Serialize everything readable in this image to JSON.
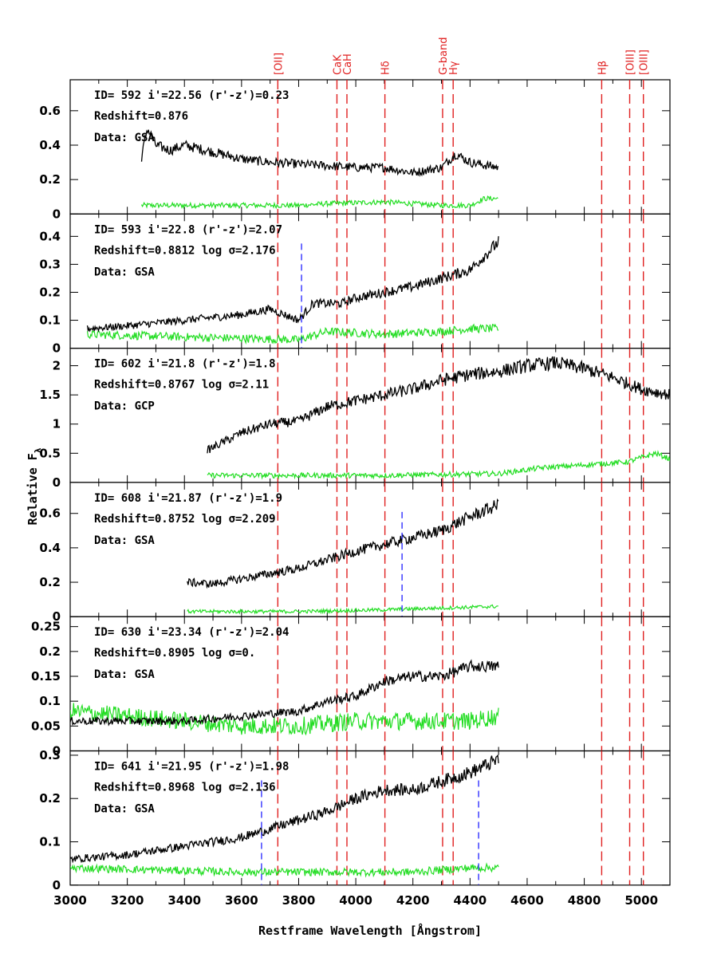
{
  "chart_data": {
    "type": "line",
    "xlabel": "Restframe Wavelength [Ångstrom]",
    "ylabel": "Relative F",
    "ylabel_sub": "λ",
    "xlim": [
      3000,
      5100
    ],
    "xticks": [
      3000,
      3200,
      3400,
      3600,
      3800,
      4000,
      4200,
      4400,
      4600,
      4800,
      5000
    ],
    "colors": {
      "spectrum": "#000000",
      "noise": "#22dd22",
      "line_marker": "#e02020",
      "sky_marker": "#2020ff"
    },
    "lines": [
      {
        "label": "[OII]",
        "wavelength": 3727
      },
      {
        "label": "CaK",
        "wavelength": 3934
      },
      {
        "label": "CaH",
        "wavelength": 3969
      },
      {
        "label": "Hδ",
        "wavelength": 4102
      },
      {
        "label": "G-band",
        "wavelength": 4304
      },
      {
        "label": "Hγ",
        "wavelength": 4341
      },
      {
        "label": "Hβ",
        "wavelength": 4861
      },
      {
        "label": "[OIII]",
        "wavelength": 4959
      },
      {
        "label": "[OIII]",
        "wavelength": 5007
      }
    ],
    "panels": [
      {
        "id_line": "ID= 592   i'=22.56  (r'-z')=0.23",
        "z_line": "Redshift=0.876",
        "data_line": "Data: GSA",
        "ylim": [
          0,
          0.78
        ],
        "yticks": [
          "0",
          "0.2",
          "0.4",
          "0.6"
        ],
        "ytick_values": [
          0,
          0.2,
          0.4,
          0.6
        ],
        "x_range": [
          3250,
          4500
        ],
        "spectrum_points": [
          [
            3250,
            0.33
          ],
          [
            3270,
            0.5
          ],
          [
            3300,
            0.4
          ],
          [
            3350,
            0.37
          ],
          [
            3400,
            0.4
          ],
          [
            3500,
            0.36
          ],
          [
            3600,
            0.32
          ],
          [
            3700,
            0.3
          ],
          [
            3800,
            0.29
          ],
          [
            3900,
            0.28
          ],
          [
            4000,
            0.27
          ],
          [
            4100,
            0.27
          ],
          [
            4200,
            0.24
          ],
          [
            4300,
            0.27
          ],
          [
            4350,
            0.35
          ],
          [
            4400,
            0.3
          ],
          [
            4500,
            0.27
          ]
        ],
        "noise_points": [
          [
            3250,
            0.05
          ],
          [
            3500,
            0.05
          ],
          [
            3800,
            0.05
          ],
          [
            3900,
            0.06
          ],
          [
            4100,
            0.07
          ],
          [
            4300,
            0.05
          ],
          [
            4400,
            0.05
          ],
          [
            4450,
            0.09
          ],
          [
            4500,
            0.09
          ]
        ],
        "noise_level": 0.05,
        "sky_markers": []
      },
      {
        "id_line": "ID= 593   i'=22.8  (r'-z')=2.07",
        "z_line": "Redshift=0.8812   log σ=2.176",
        "data_line": "Data: GSA",
        "ylim": [
          0,
          0.48
        ],
        "yticks": [
          "0",
          "0.1",
          "0.2",
          "0.3",
          "0.4"
        ],
        "ytick_values": [
          0,
          0.1,
          0.2,
          0.3,
          0.4
        ],
        "x_range": [
          3060,
          4500
        ],
        "spectrum_points": [
          [
            3060,
            0.07
          ],
          [
            3200,
            0.08
          ],
          [
            3400,
            0.1
          ],
          [
            3600,
            0.12
          ],
          [
            3700,
            0.14
          ],
          [
            3800,
            0.1
          ],
          [
            3850,
            0.16
          ],
          [
            3950,
            0.16
          ],
          [
            4000,
            0.18
          ],
          [
            4100,
            0.2
          ],
          [
            4200,
            0.22
          ],
          [
            4300,
            0.25
          ],
          [
            4400,
            0.28
          ],
          [
            4500,
            0.38
          ]
        ],
        "noise_points": [
          [
            3060,
            0.05
          ],
          [
            3400,
            0.04
          ],
          [
            3800,
            0.03
          ],
          [
            3900,
            0.06
          ],
          [
            4100,
            0.05
          ],
          [
            4300,
            0.06
          ],
          [
            4400,
            0.07
          ],
          [
            4500,
            0.07
          ]
        ],
        "noise_level": 0.05,
        "sky_markers": [
          3810
        ]
      },
      {
        "id_line": "ID= 602   i'=21.8  (r'-z')=1.8",
        "z_line": "Redshift=0.8767   log σ=2.11",
        "data_line": "Data: GCP",
        "ylim": [
          0,
          2.3
        ],
        "yticks": [
          "0",
          "0.5",
          "1",
          "1.5",
          "2"
        ],
        "ytick_values": [
          0,
          0.5,
          1,
          1.5,
          2
        ],
        "x_range": [
          3480,
          5100
        ],
        "spectrum_points": [
          [
            3480,
            0.55
          ],
          [
            3600,
            0.85
          ],
          [
            3700,
            1.0
          ],
          [
            3800,
            1.05
          ],
          [
            3900,
            1.3
          ],
          [
            4000,
            1.4
          ],
          [
            4100,
            1.5
          ],
          [
            4200,
            1.6
          ],
          [
            4300,
            1.75
          ],
          [
            4400,
            1.85
          ],
          [
            4500,
            1.9
          ],
          [
            4600,
            2.0
          ],
          [
            4700,
            2.05
          ],
          [
            4800,
            1.95
          ],
          [
            4900,
            1.8
          ],
          [
            5000,
            1.6
          ],
          [
            5100,
            1.5
          ]
        ],
        "noise_points": [
          [
            3480,
            0.12
          ],
          [
            3800,
            0.12
          ],
          [
            4100,
            0.12
          ],
          [
            4500,
            0.15
          ],
          [
            4650,
            0.25
          ],
          [
            4800,
            0.3
          ],
          [
            4950,
            0.35
          ],
          [
            5050,
            0.5
          ],
          [
            5100,
            0.4
          ]
        ],
        "noise_level": 0.15,
        "sky_markers": []
      },
      {
        "id_line": "ID= 608   i'=21.87  (r'-z')=1.9",
        "z_line": "Redshift=0.8752   log σ=2.209",
        "data_line": "Data: GSA",
        "ylim": [
          0,
          0.78
        ],
        "yticks": [
          "0",
          "0.2",
          "0.4",
          "0.6"
        ],
        "ytick_values": [
          0,
          0.2,
          0.4,
          0.6
        ],
        "x_range": [
          3410,
          4500
        ],
        "spectrum_points": [
          [
            3410,
            0.2
          ],
          [
            3500,
            0.19
          ],
          [
            3600,
            0.22
          ],
          [
            3700,
            0.25
          ],
          [
            3800,
            0.28
          ],
          [
            3900,
            0.33
          ],
          [
            4000,
            0.38
          ],
          [
            4100,
            0.42
          ],
          [
            4200,
            0.46
          ],
          [
            4300,
            0.5
          ],
          [
            4400,
            0.58
          ],
          [
            4500,
            0.65
          ]
        ],
        "noise_points": [
          [
            3410,
            0.03
          ],
          [
            3800,
            0.03
          ],
          [
            4100,
            0.04
          ],
          [
            4300,
            0.05
          ],
          [
            4500,
            0.06
          ]
        ],
        "noise_level": 0.035,
        "sky_markers": [
          4162
        ]
      },
      {
        "id_line": "ID= 630   i'=23.34  (r'-z')=2.04",
        "z_line": "Redshift=0.8905   log σ=0.",
        "data_line": "Data: GSA",
        "ylim": [
          0,
          0.27
        ],
        "yticks": [
          "0",
          "0.05",
          "0.1",
          "0.15",
          "0.2",
          "0.25"
        ],
        "ytick_values": [
          0,
          0.05,
          0.1,
          0.15,
          0.2,
          0.25
        ],
        "x_range": [
          3000,
          4500
        ],
        "spectrum_points": [
          [
            3000,
            0.06
          ],
          [
            3200,
            0.06
          ],
          [
            3400,
            0.06
          ],
          [
            3600,
            0.07
          ],
          [
            3800,
            0.08
          ],
          [
            3900,
            0.1
          ],
          [
            4000,
            0.11
          ],
          [
            4100,
            0.14
          ],
          [
            4200,
            0.15
          ],
          [
            4300,
            0.15
          ],
          [
            4400,
            0.17
          ],
          [
            4500,
            0.17
          ]
        ],
        "noise_points": [
          [
            3000,
            0.08
          ],
          [
            3200,
            0.07
          ],
          [
            3400,
            0.06
          ],
          [
            3600,
            0.05
          ],
          [
            3800,
            0.05
          ],
          [
            4000,
            0.06
          ],
          [
            4200,
            0.06
          ],
          [
            4400,
            0.06
          ],
          [
            4500,
            0.07
          ]
        ],
        "noise_level": 0.06,
        "sky_markers": []
      },
      {
        "id_line": "ID= 641   i'=21.95  (r'-z')=1.98",
        "z_line": "Redshift=0.8968   log σ=2.136",
        "data_line": "Data: GSA",
        "ylim": [
          0,
          0.31
        ],
        "yticks": [
          "0",
          "0.1",
          "0.2",
          "0.3"
        ],
        "ytick_values": [
          0,
          0.1,
          0.2,
          0.3
        ],
        "x_range": [
          3000,
          4500
        ],
        "spectrum_points": [
          [
            3000,
            0.06
          ],
          [
            3200,
            0.07
          ],
          [
            3400,
            0.09
          ],
          [
            3600,
            0.11
          ],
          [
            3700,
            0.13
          ],
          [
            3800,
            0.15
          ],
          [
            3900,
            0.17
          ],
          [
            4000,
            0.2
          ],
          [
            4100,
            0.22
          ],
          [
            4200,
            0.22
          ],
          [
            4300,
            0.24
          ],
          [
            4400,
            0.26
          ],
          [
            4500,
            0.29
          ]
        ],
        "noise_points": [
          [
            3000,
            0.04
          ],
          [
            3300,
            0.035
          ],
          [
            3600,
            0.03
          ],
          [
            3800,
            0.03
          ],
          [
            4000,
            0.03
          ],
          [
            4200,
            0.03
          ],
          [
            4400,
            0.04
          ],
          [
            4500,
            0.04
          ]
        ],
        "noise_level": 0.03,
        "sky_markers": [
          3670,
          4430
        ]
      }
    ]
  }
}
